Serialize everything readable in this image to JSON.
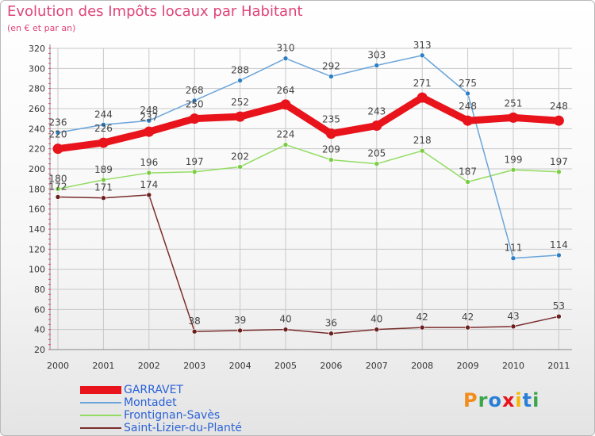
{
  "header": {
    "title": "Evolution des Impôts locaux par Habitant",
    "subtitle": "(en € et par an)"
  },
  "logo": {
    "text": "Proxiti",
    "letters": [
      "P",
      "r",
      "o",
      "x",
      "i",
      "t",
      "i"
    ]
  },
  "colors": {
    "title": "#e0447a",
    "grid": "#c8c8c8",
    "axis_text": "#333333",
    "label_text": "#444444",
    "legend_text": "#2a62d8"
  },
  "chart_data": {
    "type": "line",
    "title": "Evolution des Impôts locaux par Habitant",
    "subtitle": "(en € et par an)",
    "xlabel": "",
    "ylabel": "",
    "x": [
      "2000",
      "2001",
      "2002",
      "2003",
      "2004",
      "2005",
      "2006",
      "2007",
      "2008",
      "2009",
      "2010",
      "2011"
    ],
    "ylim": [
      20,
      320
    ],
    "yticks": [
      20,
      40,
      60,
      80,
      100,
      120,
      140,
      160,
      180,
      200,
      220,
      240,
      260,
      280,
      300,
      320
    ],
    "grid": true,
    "legend_position": "bottom-left",
    "series": [
      {
        "name": "GARRAVET",
        "color": "#e8131b",
        "marker": "#e8131b",
        "width": "thick",
        "values": [
          220,
          226,
          237,
          250,
          252,
          264,
          235,
          243,
          271,
          248,
          251,
          248
        ],
        "labels": [
          "220",
          "226",
          "237",
          "250",
          "252",
          "264",
          "235",
          "243",
          "271",
          "248",
          "251",
          "248"
        ]
      },
      {
        "name": "Montadet",
        "color": "#6aa5da",
        "marker": "#2e7ec4",
        "width": "thin",
        "values": [
          236,
          244,
          248,
          268,
          288,
          310,
          292,
          303,
          313,
          275,
          111,
          114
        ],
        "labels": [
          "236",
          "244",
          "248",
          "268",
          "288",
          "310",
          "292",
          "303",
          "313",
          "275",
          "111",
          "114"
        ]
      },
      {
        "name": "Frontignan-Savès",
        "color": "#92dc61",
        "marker": "#7acc42",
        "width": "thin",
        "values": [
          180,
          189,
          196,
          197,
          202,
          224,
          209,
          205,
          218,
          187,
          199,
          197
        ],
        "labels": [
          "180",
          "189",
          "196",
          "197",
          "202",
          "224",
          "209",
          "205",
          "218",
          "187",
          "199",
          "197"
        ]
      },
      {
        "name": "Saint-Lizier-du-Planté",
        "color": "#7a2d2d",
        "marker": "#6b1f1f",
        "width": "thin",
        "values": [
          172,
          171,
          174,
          38,
          39,
          40,
          36,
          40,
          42,
          42,
          43,
          53
        ],
        "labels": [
          "172",
          "171",
          "174",
          "38",
          "39",
          "40",
          "36",
          "40",
          "42",
          "42",
          "43",
          "53"
        ]
      }
    ]
  }
}
